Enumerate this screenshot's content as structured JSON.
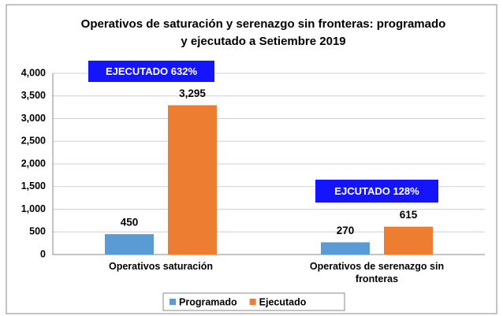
{
  "chart_data": {
    "type": "bar",
    "title": "Operativos de saturación y serenazgo sin fronteras: programado y ejecutado a Setiembre 2019",
    "categories": [
      "Operativos saturación",
      "Operativos de serenazgo sin fronteras"
    ],
    "series": [
      {
        "name": "Programado",
        "color": "#5b9bd5",
        "values": [
          450,
          270
        ]
      },
      {
        "name": "Ejecutado",
        "color": "#ed7d31",
        "values": [
          3295,
          615
        ],
        "value_labels": [
          "3,295",
          "615"
        ]
      }
    ],
    "annotations": [
      "EJECUTADO 632%",
      "EJCUTADO 128%"
    ],
    "ylim": [
      0,
      4000
    ],
    "yticks": [
      0,
      500,
      {
        "value": 1000,
        "label": "1,000"
      },
      {
        "value": 1500,
        "label": "1,500"
      },
      {
        "value": 2000,
        "label": "2,000"
      },
      {
        "value": 2500,
        "label": "2,500"
      },
      {
        "value": 3000,
        "label": "3,000"
      },
      {
        "value": 3500,
        "label": "3,500"
      },
      {
        "value": 4000,
        "label": "4,000"
      }
    ],
    "grid": true,
    "legend": "bottom"
  }
}
